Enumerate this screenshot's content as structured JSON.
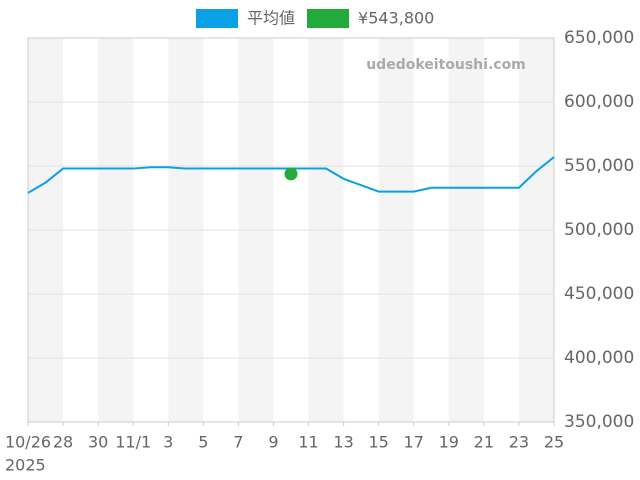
{
  "chart_data": {
    "type": "line",
    "watermark": "udedokeitoushi.com",
    "x": [
      "2025-10-26",
      "2025-10-27",
      "2025-10-28",
      "2025-10-29",
      "2025-10-30",
      "2025-10-31",
      "2025-11-01",
      "2025-11-02",
      "2025-11-03",
      "2025-11-04",
      "2025-11-05",
      "2025-11-06",
      "2025-11-07",
      "2025-11-08",
      "2025-11-09",
      "2025-11-10",
      "2025-11-11",
      "2025-11-12",
      "2025-11-13",
      "2025-11-14",
      "2025-11-15",
      "2025-11-16",
      "2025-11-17",
      "2025-11-18",
      "2025-11-19",
      "2025-11-20",
      "2025-11-21",
      "2025-11-22",
      "2025-11-23",
      "2025-11-24",
      "2025-11-25"
    ],
    "series": [
      {
        "name": "平均値",
        "color": "#0aa0e6",
        "values": [
          529000,
          537000,
          548000,
          548000,
          548000,
          548000,
          548000,
          549000,
          549000,
          548000,
          548000,
          548000,
          548000,
          548000,
          548000,
          548000,
          548000,
          548000,
          540000,
          535000,
          530000,
          530000,
          530000,
          533000,
          533000,
          533000,
          533000,
          533000,
          533000,
          546000,
          557000
        ]
      }
    ],
    "point": {
      "name": "¥543,800",
      "color": "#22aa3a",
      "x": "2025-11-10",
      "value": 543800
    },
    "xlim": [
      "2025-10-26",
      "2025-11-25"
    ],
    "xticks": [
      {
        "value": "2025-10-26",
        "label": "10/26"
      },
      {
        "value": "2025-10-28",
        "label": "28"
      },
      {
        "value": "2025-10-30",
        "label": "30"
      },
      {
        "value": "2025-11-01",
        "label": "11/1"
      },
      {
        "value": "2025-11-03",
        "label": "3"
      },
      {
        "value": "2025-11-05",
        "label": "5"
      },
      {
        "value": "2025-11-07",
        "label": "7"
      },
      {
        "value": "2025-11-09",
        "label": "9"
      },
      {
        "value": "2025-11-11",
        "label": "11"
      },
      {
        "value": "2025-11-13",
        "label": "13"
      },
      {
        "value": "2025-11-15",
        "label": "15"
      },
      {
        "value": "2025-11-17",
        "label": "17"
      },
      {
        "value": "2025-11-19",
        "label": "19"
      },
      {
        "value": "2025-11-21",
        "label": "21"
      },
      {
        "value": "2025-11-23",
        "label": "23"
      },
      {
        "value": "2025-11-25",
        "label": "25"
      }
    ],
    "x_year": "2025",
    "ylim": [
      350000,
      650000
    ],
    "yticks": [
      {
        "value": 350000,
        "label": "350,000"
      },
      {
        "value": 400000,
        "label": "400,000"
      },
      {
        "value": 450000,
        "label": "450,000"
      },
      {
        "value": 500000,
        "label": "500,000"
      },
      {
        "value": 550000,
        "label": "550,000"
      },
      {
        "value": 600000,
        "label": "600,000"
      },
      {
        "value": 650000,
        "label": "650,000"
      }
    ],
    "grid": true,
    "alternating_bands": true
  }
}
